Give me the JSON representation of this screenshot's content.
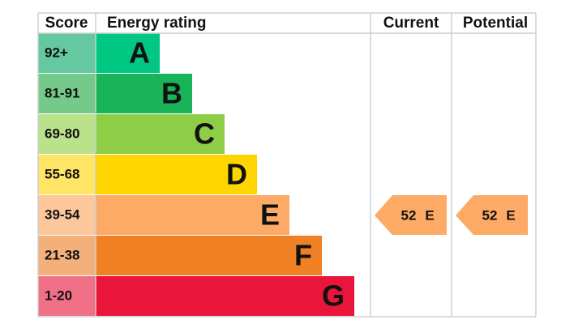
{
  "header": {
    "score": "Score",
    "rating": "Energy rating",
    "current": "Current",
    "potential": "Potential"
  },
  "bands": [
    {
      "score": "92+",
      "letter": "A",
      "color": "#00c781",
      "score_color": "#64c8a0"
    },
    {
      "score": "81-91",
      "letter": "B",
      "color": "#19b459",
      "score_color": "#75c98b"
    },
    {
      "score": "69-80",
      "letter": "C",
      "color": "#8dce46",
      "score_color": "#bae28b"
    },
    {
      "score": "55-68",
      "letter": "D",
      "color": "#ffd500",
      "score_color": "#ffe566"
    },
    {
      "score": "39-54",
      "letter": "E",
      "color": "#fcaa65",
      "score_color": "#fdc79c"
    },
    {
      "score": "21-38",
      "letter": "F",
      "color": "#ef8023",
      "score_color": "#f4b07b"
    },
    {
      "score": "1-20",
      "letter": "G",
      "color": "#e9153b",
      "score_color": "#f07088"
    }
  ],
  "current": {
    "value": 52,
    "letter": "E",
    "band": 4
  },
  "potential": {
    "value": 52,
    "letter": "E",
    "band": 4
  }
}
